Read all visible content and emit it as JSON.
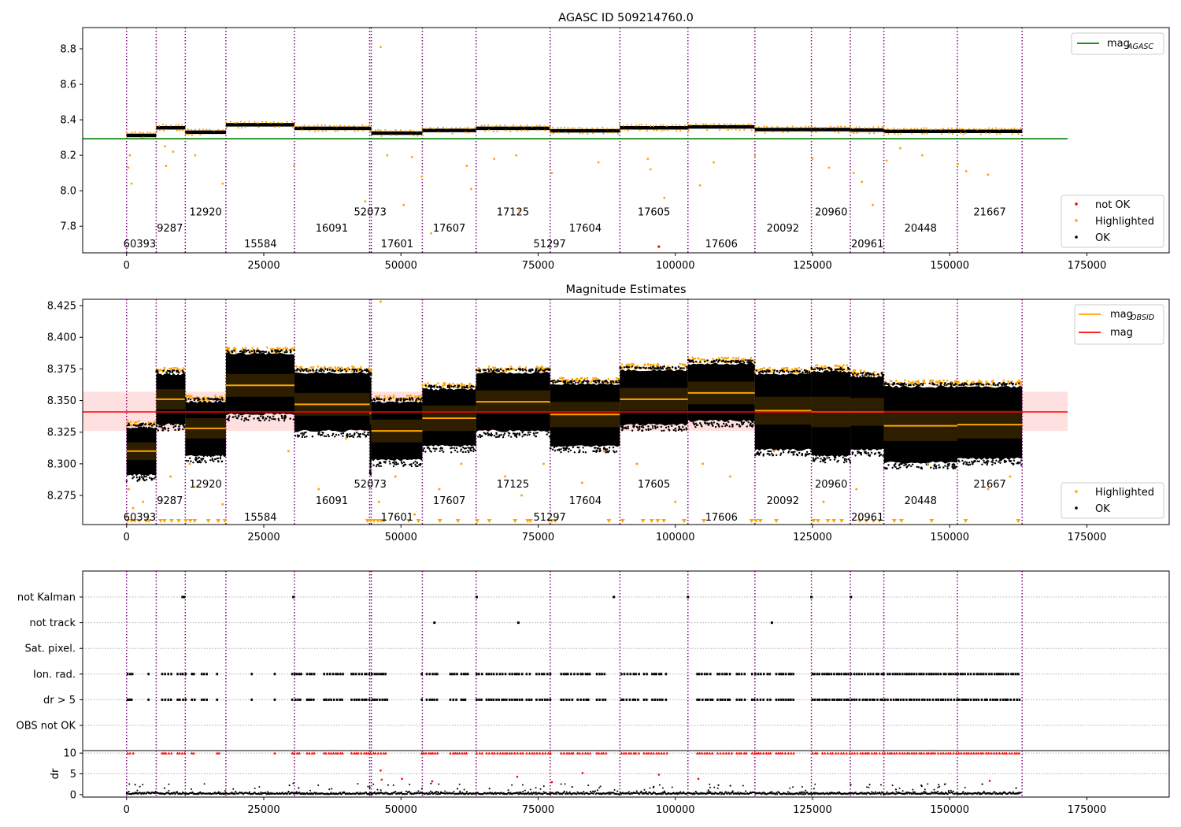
{
  "chart_data": [
    {
      "type": "scatter",
      "title": "AGASC ID 509214760.0",
      "xlim": [
        -8000,
        190000
      ],
      "ylim": [
        7.65,
        8.92
      ],
      "xticks": [
        0,
        25000,
        50000,
        75000,
        100000,
        125000,
        150000,
        175000
      ],
      "yticks": [
        7.8,
        8.0,
        8.2,
        8.4,
        8.6,
        8.8
      ],
      "ytick_labels": [
        "7.8",
        "8.0",
        "8.2",
        "8.4",
        "8.6",
        "8.8"
      ],
      "reference_line": {
        "name": "mag",
        "sub": "AGASC",
        "y": 8.293,
        "x": [
          -8000,
          171500
        ],
        "color": "#008000"
      },
      "legend_lines": [
        {
          "name": "mag",
          "sub": "AGASC",
          "color": "#008000"
        }
      ],
      "legend_points": [
        {
          "name": "not OK",
          "color": "#ff0000"
        },
        {
          "name": "Highlighted",
          "color": "#ffa500"
        },
        {
          "name": "OK",
          "color": "#000000"
        }
      ],
      "segments": [
        {
          "x0": 0,
          "x1": 5400,
          "level": 8.312,
          "spread": 0.02
        },
        {
          "x0": 5400,
          "x1": 10700,
          "level": 8.355,
          "spread": 0.02
        },
        {
          "x0": 10700,
          "x1": 18100,
          "level": 8.33,
          "spread": 0.02
        },
        {
          "x0": 18100,
          "x1": 30600,
          "level": 8.372,
          "spread": 0.02
        },
        {
          "x0": 30600,
          "x1": 44300,
          "level": 8.352,
          "spread": 0.02
        },
        {
          "x0": 44300,
          "x1": 44600,
          "level": 8.35,
          "spread": 0.02
        },
        {
          "x0": 44600,
          "x1": 53900,
          "level": 8.325,
          "spread": 0.02
        },
        {
          "x0": 53900,
          "x1": 63700,
          "level": 8.34,
          "spread": 0.02
        },
        {
          "x0": 63700,
          "x1": 77200,
          "level": 8.352,
          "spread": 0.02
        },
        {
          "x0": 77200,
          "x1": 89900,
          "level": 8.338,
          "spread": 0.02
        },
        {
          "x0": 89900,
          "x1": 102300,
          "level": 8.355,
          "spread": 0.02
        },
        {
          "x0": 102300,
          "x1": 114500,
          "level": 8.36,
          "spread": 0.02
        },
        {
          "x0": 114500,
          "x1": 124800,
          "level": 8.345,
          "spread": 0.02
        },
        {
          "x0": 124800,
          "x1": 131900,
          "level": 8.345,
          "spread": 0.02
        },
        {
          "x0": 131900,
          "x1": 138000,
          "level": 8.342,
          "spread": 0.02
        },
        {
          "x0": 138000,
          "x1": 151400,
          "level": 8.335,
          "spread": 0.02
        },
        {
          "x0": 151400,
          "x1": 163200,
          "level": 8.335,
          "spread": 0.02
        }
      ],
      "highlighted_points": [
        {
          "x": 300,
          "y": 8.13
        },
        {
          "x": 600,
          "y": 8.2
        },
        {
          "x": 900,
          "y": 8.04
        },
        {
          "x": 7000,
          "y": 8.25
        },
        {
          "x": 7200,
          "y": 8.14
        },
        {
          "x": 8500,
          "y": 8.22
        },
        {
          "x": 12500,
          "y": 8.2
        },
        {
          "x": 17500,
          "y": 8.04
        },
        {
          "x": 30500,
          "y": 8.14
        },
        {
          "x": 43500,
          "y": 7.94
        },
        {
          "x": 46300,
          "y": 8.81
        },
        {
          "x": 47500,
          "y": 8.2
        },
        {
          "x": 50500,
          "y": 7.92
        },
        {
          "x": 52000,
          "y": 8.19
        },
        {
          "x": 53800,
          "y": 8.08
        },
        {
          "x": 55500,
          "y": 7.76
        },
        {
          "x": 62000,
          "y": 8.14
        },
        {
          "x": 62800,
          "y": 8.01
        },
        {
          "x": 67000,
          "y": 8.18
        },
        {
          "x": 71000,
          "y": 8.2
        },
        {
          "x": 71500,
          "y": 7.89
        },
        {
          "x": 77500,
          "y": 8.1
        },
        {
          "x": 86000,
          "y": 8.16
        },
        {
          "x": 95000,
          "y": 8.18
        },
        {
          "x": 95500,
          "y": 8.12
        },
        {
          "x": 98000,
          "y": 7.96
        },
        {
          "x": 104500,
          "y": 8.03
        },
        {
          "x": 107000,
          "y": 8.16
        },
        {
          "x": 114500,
          "y": 8.2
        },
        {
          "x": 125000,
          "y": 8.18
        },
        {
          "x": 128000,
          "y": 8.13
        },
        {
          "x": 132500,
          "y": 8.1
        },
        {
          "x": 134000,
          "y": 8.05
        },
        {
          "x": 136000,
          "y": 7.92
        },
        {
          "x": 138500,
          "y": 8.17
        },
        {
          "x": 141000,
          "y": 8.24
        },
        {
          "x": 145000,
          "y": 8.2
        },
        {
          "x": 151500,
          "y": 8.15
        },
        {
          "x": 153000,
          "y": 8.11
        },
        {
          "x": 157000,
          "y": 8.09
        }
      ],
      "not_ok_points": [
        {
          "x": 97000,
          "y": 7.685
        }
      ],
      "obsid_labels": [
        {
          "text": "60393",
          "x": 2400,
          "y": 7.7
        },
        {
          "text": "9287",
          "x": 7900,
          "y": 7.79
        },
        {
          "text": "12920",
          "x": 14400,
          "y": 7.88
        },
        {
          "text": "15584",
          "x": 24400,
          "y": 7.7
        },
        {
          "text": "16091",
          "x": 37400,
          "y": 7.79
        },
        {
          "text": "52073",
          "x": 44400,
          "y": 7.88
        },
        {
          "text": "17601",
          "x": 49300,
          "y": 7.7
        },
        {
          "text": "17607",
          "x": 58800,
          "y": 7.79
        },
        {
          "text": "17125",
          "x": 70400,
          "y": 7.88
        },
        {
          "text": "51297",
          "x": 77100,
          "y": 7.7
        },
        {
          "text": "17604",
          "x": 83600,
          "y": 7.79
        },
        {
          "text": "17605",
          "x": 96100,
          "y": 7.88
        },
        {
          "text": "17606",
          "x": 108400,
          "y": 7.7
        },
        {
          "text": "20092",
          "x": 119600,
          "y": 7.79
        },
        {
          "text": "20960",
          "x": 128400,
          "y": 7.88
        },
        {
          "text": "20961",
          "x": 135000,
          "y": 7.7
        },
        {
          "text": "20448",
          "x": 144700,
          "y": 7.79
        },
        {
          "text": "21667",
          "x": 157300,
          "y": 7.88
        }
      ]
    },
    {
      "type": "scatter",
      "title": "Magnitude Estimates",
      "xlim": [
        -8000,
        190000
      ],
      "ylim": [
        8.252,
        8.43
      ],
      "xticks": [
        0,
        25000,
        50000,
        75000,
        100000,
        125000,
        150000,
        175000
      ],
      "yticks": [
        8.275,
        8.3,
        8.325,
        8.35,
        8.375,
        8.4,
        8.425
      ],
      "ytick_labels": [
        "8.275",
        "8.300",
        "8.325",
        "8.350",
        "8.375",
        "8.400",
        "8.425"
      ],
      "mag_line": {
        "name": "mag",
        "y": 8.341,
        "band": [
          8.326,
          8.357
        ],
        "x": [
          -8000,
          171500
        ],
        "color": "#ff0000"
      },
      "legend_lines": [
        {
          "name": "mag",
          "sub": "OBSID",
          "color": "#ffa500"
        },
        {
          "name": "mag",
          "sub": "",
          "color": "#ff0000"
        }
      ],
      "legend_points": [
        {
          "name": "Highlighted",
          "color": "#ffa500"
        },
        {
          "name": "OK",
          "color": "#000000"
        }
      ],
      "segments": [
        {
          "x0": 0,
          "x1": 5400,
          "mean": 8.31,
          "std": 0.007,
          "lo": 8.29,
          "hi": 8.33
        },
        {
          "x0": 5400,
          "x1": 10700,
          "mean": 8.351,
          "std": 0.008,
          "lo": 8.33,
          "hi": 8.372
        },
        {
          "x0": 10700,
          "x1": 18100,
          "mean": 8.328,
          "std": 0.008,
          "lo": 8.305,
          "hi": 8.35
        },
        {
          "x0": 18100,
          "x1": 30600,
          "mean": 8.362,
          "std": 0.009,
          "lo": 8.338,
          "hi": 8.388
        },
        {
          "x0": 30600,
          "x1": 44300,
          "mean": 8.347,
          "std": 0.009,
          "lo": 8.325,
          "hi": 8.373
        },
        {
          "x0": 44300,
          "x1": 44600,
          "mean": 8.34,
          "std": 0.009,
          "lo": 8.295,
          "hi": 8.37
        },
        {
          "x0": 44600,
          "x1": 53900,
          "mean": 8.326,
          "std": 0.009,
          "lo": 8.302,
          "hi": 8.35
        },
        {
          "x0": 53900,
          "x1": 63700,
          "mean": 8.336,
          "std": 0.01,
          "lo": 8.313,
          "hi": 8.36
        },
        {
          "x0": 63700,
          "x1": 77200,
          "mean": 8.349,
          "std": 0.009,
          "lo": 8.325,
          "hi": 8.373
        },
        {
          "x0": 77200,
          "x1": 89900,
          "mean": 8.339,
          "std": 0.01,
          "lo": 8.313,
          "hi": 8.364
        },
        {
          "x0": 89900,
          "x1": 102300,
          "mean": 8.351,
          "std": 0.009,
          "lo": 8.33,
          "hi": 8.375
        },
        {
          "x0": 102300,
          "x1": 114500,
          "mean": 8.356,
          "std": 0.009,
          "lo": 8.333,
          "hi": 8.38
        },
        {
          "x0": 114500,
          "x1": 124800,
          "mean": 8.342,
          "std": 0.011,
          "lo": 8.31,
          "hi": 8.372
        },
        {
          "x0": 124800,
          "x1": 131900,
          "mean": 8.341,
          "std": 0.012,
          "lo": 8.305,
          "hi": 8.374
        },
        {
          "x0": 131900,
          "x1": 138000,
          "mean": 8.341,
          "std": 0.011,
          "lo": 8.31,
          "hi": 8.37
        },
        {
          "x0": 138000,
          "x1": 151400,
          "mean": 8.33,
          "std": 0.012,
          "lo": 8.3,
          "hi": 8.362
        },
        {
          "x0": 151400,
          "x1": 163200,
          "mean": 8.331,
          "std": 0.011,
          "lo": 8.303,
          "hi": 8.362
        }
      ],
      "highlighted_points": [
        {
          "x": 46300,
          "y": 8.429
        },
        {
          "x": 400,
          "y": 8.28
        },
        {
          "x": 1200,
          "y": 8.265
        },
        {
          "x": 3000,
          "y": 8.27
        },
        {
          "x": 8000,
          "y": 8.29
        },
        {
          "x": 11500,
          "y": 8.3
        },
        {
          "x": 12800,
          "y": 8.282
        },
        {
          "x": 17500,
          "y": 8.268
        },
        {
          "x": 29500,
          "y": 8.31
        },
        {
          "x": 35000,
          "y": 8.28
        },
        {
          "x": 40000,
          "y": 8.32
        },
        {
          "x": 46000,
          "y": 8.27
        },
        {
          "x": 49000,
          "y": 8.29
        },
        {
          "x": 52500,
          "y": 8.26
        },
        {
          "x": 57000,
          "y": 8.28
        },
        {
          "x": 61000,
          "y": 8.3
        },
        {
          "x": 69000,
          "y": 8.29
        },
        {
          "x": 72000,
          "y": 8.275
        },
        {
          "x": 76000,
          "y": 8.3
        },
        {
          "x": 83000,
          "y": 8.285
        },
        {
          "x": 87000,
          "y": 8.31
        },
        {
          "x": 93000,
          "y": 8.3
        },
        {
          "x": 100000,
          "y": 8.27
        },
        {
          "x": 105000,
          "y": 8.3
        },
        {
          "x": 110000,
          "y": 8.29
        },
        {
          "x": 118000,
          "y": 8.31
        },
        {
          "x": 127000,
          "y": 8.27
        },
        {
          "x": 133000,
          "y": 8.28
        },
        {
          "x": 146000,
          "y": 8.3
        },
        {
          "x": 157000,
          "y": 8.28
        },
        {
          "x": 161000,
          "y": 8.29
        }
      ],
      "clipped_markers_x": [
        200,
        900,
        1500,
        2300,
        3600,
        4100,
        6200,
        6900,
        8200,
        9500,
        10800,
        11600,
        12400,
        14900,
        16700,
        17900,
        43900,
        44500,
        45100,
        45800,
        46400,
        46900,
        51400,
        53200,
        57100,
        60400,
        63900,
        66100,
        70800,
        73100,
        73600,
        77000,
        77500,
        78100,
        87900,
        90400,
        94100,
        95700,
        96800,
        97900,
        101600,
        105200,
        113900,
        114700,
        115500,
        118400,
        125200,
        126000,
        127800,
        128900,
        130300,
        133600,
        134800,
        136100,
        137200,
        139900,
        141200,
        146700,
        152900,
        162500
      ],
      "obsid_labels": [
        {
          "text": "60393",
          "x": 2400,
          "y": 8.258
        },
        {
          "text": "9287",
          "x": 7900,
          "y": 8.271
        },
        {
          "text": "12920",
          "x": 14400,
          "y": 8.284
        },
        {
          "text": "15584",
          "x": 24400,
          "y": 8.258
        },
        {
          "text": "16091",
          "x": 37400,
          "y": 8.271
        },
        {
          "text": "52073",
          "x": 44400,
          "y": 8.284
        },
        {
          "text": "17601",
          "x": 49300,
          "y": 8.258
        },
        {
          "text": "17607",
          "x": 58800,
          "y": 8.271
        },
        {
          "text": "17125",
          "x": 70400,
          "y": 8.284
        },
        {
          "text": "51297",
          "x": 77100,
          "y": 8.258
        },
        {
          "text": "17604",
          "x": 83600,
          "y": 8.271
        },
        {
          "text": "17605",
          "x": 96100,
          "y": 8.284
        },
        {
          "text": "17606",
          "x": 108400,
          "y": 8.258
        },
        {
          "text": "20092",
          "x": 119600,
          "y": 8.271
        },
        {
          "text": "20960",
          "x": 128400,
          "y": 8.284
        },
        {
          "text": "20961",
          "x": 135000,
          "y": 8.258
        },
        {
          "text": "20448",
          "x": 144700,
          "y": 8.271
        },
        {
          "text": "21667",
          "x": 157300,
          "y": 8.284
        }
      ]
    },
    {
      "type": "scatter",
      "title": "",
      "xlim": [
        -8000,
        190000
      ],
      "flag_categories": [
        "not Kalman",
        "not track",
        "Sat. pixel.",
        "Ion. rad.",
        "dr > 5",
        "OBS not OK"
      ],
      "flag_points": [
        {
          "flag": "not Kalman",
          "x": [
            10200,
            10500,
            30400,
            63800,
            88800,
            102300,
            124800,
            132000
          ]
        },
        {
          "flag": "not track",
          "x": [
            56100,
            71400,
            117600
          ]
        },
        {
          "flag": "Sat. pixel.",
          "x": []
        },
        {
          "flag": "Ion. rad.",
          "density": "clustered",
          "ranges": [
            [
              0,
              163000
            ]
          ]
        },
        {
          "flag": "dr > 5",
          "density": "clustered",
          "ranges": [
            [
              0,
              163000
            ]
          ]
        },
        {
          "flag": "OBS not OK",
          "x": []
        }
      ],
      "dr_ylabel": "dr",
      "dr_yticks": [
        0,
        5,
        10
      ],
      "dr_ylim": [
        -0.6,
        10.6
      ],
      "dr_clip_value": 10,
      "dr_sample_points": [
        {
          "x": 46300,
          "y": 5.8
        },
        {
          "x": 46500,
          "y": 3.6
        },
        {
          "x": 50200,
          "y": 3.8
        },
        {
          "x": 55700,
          "y": 3.2
        },
        {
          "x": 71200,
          "y": 4.3
        },
        {
          "x": 77500,
          "y": 3.0
        },
        {
          "x": 83100,
          "y": 5.2
        },
        {
          "x": 97000,
          "y": 4.8
        },
        {
          "x": 104200,
          "y": 3.8
        },
        {
          "x": 157300,
          "y": 3.3
        }
      ]
    }
  ],
  "obsid_boundaries_x": [
    0,
    5400,
    10700,
    18100,
    30600,
    44300,
    44600,
    53900,
    63700,
    77200,
    89900,
    102300,
    114500,
    124800,
    131900,
    138000,
    151400,
    163200
  ]
}
